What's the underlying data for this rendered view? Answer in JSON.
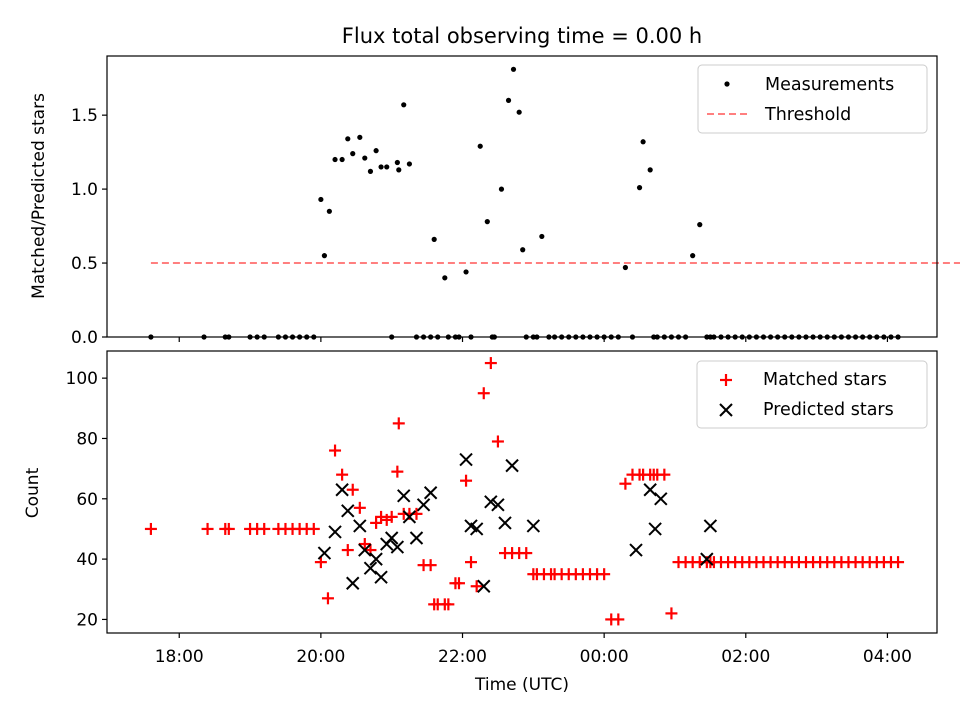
{
  "figure": {
    "title": "Flux total observing time = 0.00 h"
  },
  "chart_data": [
    {
      "type": "scatter",
      "title": "Flux total observing time = 0.00 h",
      "xlabel": "",
      "ylabel": "Matched/Predicted stars",
      "xlim": [
        -3.02,
        8.7
      ],
      "ylim": [
        0,
        1.9
      ],
      "yticks": [
        0.0,
        0.5,
        1.0,
        1.5
      ],
      "ytick_labels": [
        "0.0",
        "0.5",
        "1.0",
        "1.5"
      ],
      "legend": {
        "position": "upper right",
        "entries": [
          "Measurements",
          "Threshold"
        ]
      },
      "series": [
        {
          "name": "Measurements",
          "marker": "dot",
          "color": "#000000",
          "x": [
            -2.4,
            -1.65,
            -1.35,
            -1.3,
            -1.0,
            -0.9,
            -0.8,
            -0.6,
            -0.5,
            -0.4,
            -0.3,
            -0.2,
            -0.1,
            0.0,
            0.05,
            0.12,
            0.2,
            0.3,
            0.38,
            0.45,
            0.55,
            0.62,
            0.7,
            0.78,
            0.85,
            0.93,
            1.0,
            1.08,
            1.1,
            1.17,
            1.25,
            1.35,
            1.45,
            1.55,
            1.6,
            1.65,
            1.75,
            1.8,
            1.9,
            1.95,
            2.05,
            2.12,
            2.25,
            2.35,
            2.42,
            2.45,
            2.55,
            2.65,
            2.72,
            2.8,
            2.85,
            2.9,
            3.0,
            3.05,
            3.12,
            3.22,
            3.3,
            3.4,
            3.5,
            3.6,
            3.7,
            3.8,
            3.9,
            4.0,
            4.1,
            4.2,
            4.3,
            4.4,
            4.5,
            4.55,
            4.65,
            4.7,
            4.75,
            4.85,
            4.95,
            5.05,
            5.15,
            5.25,
            5.35,
            5.45,
            5.5,
            5.55,
            5.65,
            5.75,
            5.85,
            5.95,
            6.05,
            6.15,
            6.25,
            6.35,
            6.45,
            6.55,
            6.65,
            6.75,
            6.85,
            6.95,
            7.05,
            7.15,
            7.25,
            7.35,
            7.45,
            7.55,
            7.65,
            7.75,
            7.85,
            7.95,
            8.05,
            8.15
          ],
          "y": [
            0,
            0,
            0,
            0,
            0,
            0,
            0,
            0,
            0,
            0,
            0,
            0,
            0,
            0.93,
            0.55,
            0.85,
            1.2,
            1.2,
            1.34,
            1.24,
            1.35,
            1.21,
            1.12,
            1.26,
            1.15,
            1.15,
            0,
            1.18,
            1.13,
            1.57,
            1.17,
            0,
            0,
            0,
            0.66,
            0,
            0.4,
            0,
            0,
            0,
            0.44,
            0,
            1.29,
            0.78,
            0,
            0,
            1.0,
            1.6,
            1.81,
            1.52,
            0.59,
            0,
            0,
            0,
            0.68,
            0,
            0,
            0,
            0,
            0,
            0,
            0,
            0,
            0,
            0,
            0,
            0.47,
            0,
            1.01,
            1.32,
            1.13,
            0,
            0,
            0,
            0,
            0,
            0,
            0.55,
            0.76,
            0,
            0,
            0,
            0,
            0,
            0,
            0,
            0,
            0,
            0,
            0,
            0,
            0,
            0,
            0,
            0,
            0,
            0,
            0,
            0,
            0,
            0,
            0,
            0,
            0,
            0,
            0,
            0,
            0
          ]
        },
        {
          "name": "Threshold",
          "marker": "dashed-line",
          "color": "#ff7f7f",
          "x": [
            -2.4,
            9.2
          ],
          "y": [
            0.5,
            0.5
          ]
        }
      ]
    },
    {
      "type": "scatter",
      "title": "",
      "xlabel": "Time (UTC)",
      "ylabel": "Count",
      "xlim": [
        -3.02,
        8.7
      ],
      "ylim": [
        15.5,
        109
      ],
      "xticks": [
        -2,
        0,
        2,
        4,
        6,
        8
      ],
      "xtick_labels": [
        "18:00",
        "20:00",
        "22:00",
        "00:00",
        "02:00",
        "04:00"
      ],
      "yticks": [
        20,
        40,
        60,
        80,
        100
      ],
      "ytick_labels": [
        "20",
        "40",
        "60",
        "80",
        "100"
      ],
      "legend": {
        "position": "upper right",
        "entries": [
          "Matched stars",
          "Predicted stars"
        ]
      },
      "series": [
        {
          "name": "Matched stars",
          "marker": "plus",
          "color": "#ff0000",
          "x": [
            -2.4,
            -1.6,
            -1.35,
            -1.3,
            -1.0,
            -0.9,
            -0.8,
            -0.6,
            -0.5,
            -0.4,
            -0.3,
            -0.2,
            -0.1,
            0.0,
            0.1,
            0.2,
            0.3,
            0.38,
            0.45,
            0.55,
            0.62,
            0.7,
            0.78,
            0.85,
            0.93,
            1.0,
            1.08,
            1.1,
            1.17,
            1.25,
            1.35,
            1.45,
            1.55,
            1.6,
            1.65,
            1.75,
            1.8,
            1.9,
            1.95,
            2.05,
            2.12,
            2.2,
            2.3,
            2.4,
            2.5,
            2.6,
            2.7,
            2.8,
            2.9,
            3.0,
            3.05,
            3.15,
            3.25,
            3.3,
            3.4,
            3.5,
            3.6,
            3.7,
            3.8,
            3.9,
            4.0,
            4.1,
            4.2,
            4.3,
            4.4,
            4.5,
            4.55,
            4.65,
            4.7,
            4.75,
            4.85,
            4.95,
            5.05,
            5.15,
            5.25,
            5.35,
            5.45,
            5.5,
            5.55,
            5.65,
            5.75,
            5.85,
            5.95,
            6.05,
            6.15,
            6.25,
            6.35,
            6.45,
            6.55,
            6.65,
            6.75,
            6.85,
            6.95,
            7.05,
            7.15,
            7.25,
            7.35,
            7.45,
            7.55,
            7.65,
            7.75,
            7.85,
            7.95,
            8.05,
            8.15
          ],
          "y": [
            50,
            50,
            50,
            50,
            50,
            50,
            50,
            50,
            50,
            50,
            50,
            50,
            50,
            39,
            27,
            76,
            68,
            43,
            63,
            57,
            45,
            43,
            52,
            54,
            53,
            54,
            69,
            85,
            55,
            55,
            55,
            38,
            38,
            25,
            25,
            25,
            25,
            32,
            32,
            66,
            39,
            31,
            95,
            105,
            79,
            42,
            42,
            42,
            42,
            35,
            35,
            35,
            35,
            35,
            35,
            35,
            35,
            35,
            35,
            35,
            35,
            20,
            20,
            65,
            68,
            68,
            68,
            68,
            68,
            68,
            68,
            22,
            39,
            39,
            39,
            39,
            39,
            39,
            39,
            39,
            39,
            39,
            39,
            39,
            39,
            39,
            39,
            39,
            39,
            39,
            39,
            39,
            39,
            39,
            39,
            39,
            39,
            39,
            39,
            39,
            39,
            39,
            39,
            39,
            39
          ]
        },
        {
          "name": "Predicted stars",
          "marker": "x",
          "color": "#000000",
          "x": [
            0.05,
            0.2,
            0.3,
            0.38,
            0.45,
            0.55,
            0.62,
            0.7,
            0.78,
            0.85,
            0.93,
            1.0,
            1.08,
            1.17,
            1.25,
            1.35,
            1.45,
            1.55,
            2.05,
            2.12,
            2.2,
            2.3,
            2.4,
            2.5,
            2.6,
            2.7,
            3.0,
            4.45,
            4.65,
            4.72,
            4.8,
            5.45,
            5.5
          ],
          "y": [
            42,
            49,
            63,
            56,
            32,
            51,
            43,
            37,
            40,
            34,
            45,
            47,
            44,
            61,
            54,
            47,
            58,
            62,
            73,
            51,
            50,
            31,
            59,
            58,
            52,
            71,
            51,
            43,
            63,
            50,
            60,
            40,
            51
          ]
        }
      ]
    }
  ]
}
